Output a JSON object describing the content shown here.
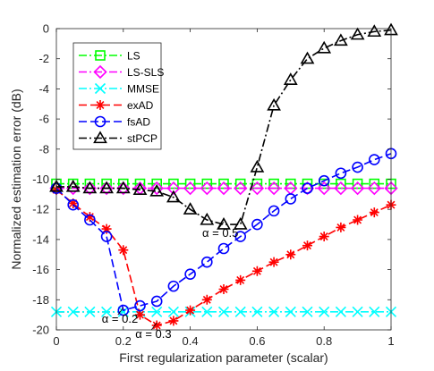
{
  "chart_data": {
    "type": "line",
    "title": "",
    "xlabel": "First regularization parameter (scalar)",
    "ylabel": "Normalized estimation error (dB)",
    "xlim": [
      0,
      1
    ],
    "ylim": [
      -20,
      0
    ],
    "xticks": [
      0,
      0.2,
      0.4,
      0.6,
      0.8,
      1
    ],
    "xtick_labels": [
      "0",
      "0.2",
      "0.4",
      "0.6",
      "0.8",
      "1"
    ],
    "yticks": [
      0,
      -2,
      -4,
      -6,
      -8,
      -10,
      -12,
      -14,
      -16,
      -18,
      -20
    ],
    "ytick_labels": [
      "0",
      "-2",
      "-4",
      "-6",
      "-8",
      "-10",
      "-12",
      "-14",
      "-16",
      "-18",
      "-20"
    ],
    "grid": false,
    "legend_position": "top-left",
    "x": [
      0,
      0.05,
      0.1,
      0.15,
      0.2,
      0.25,
      0.3,
      0.35,
      0.4,
      0.45,
      0.5,
      0.55,
      0.6,
      0.65,
      0.7,
      0.75,
      0.8,
      0.85,
      0.9,
      0.95,
      1
    ],
    "series": [
      {
        "name": "LS",
        "color": "#00ff00",
        "dash": "dashdot",
        "marker": "square",
        "values": [
          -10.3,
          -10.3,
          -10.3,
          -10.3,
          -10.3,
          -10.3,
          -10.3,
          -10.3,
          -10.3,
          -10.3,
          -10.3,
          -10.3,
          -10.3,
          -10.3,
          -10.3,
          -10.3,
          -10.3,
          -10.3,
          -10.3,
          -10.3,
          -10.3
        ]
      },
      {
        "name": "LS-SLS",
        "color": "#ff00ff",
        "dash": "dashdot",
        "marker": "diamond",
        "values": [
          -10.6,
          -10.6,
          -10.6,
          -10.6,
          -10.6,
          -10.6,
          -10.6,
          -10.6,
          -10.6,
          -10.6,
          -10.6,
          -10.6,
          -10.6,
          -10.6,
          -10.6,
          -10.6,
          -10.6,
          -10.6,
          -10.6,
          -10.6,
          -10.6
        ]
      },
      {
        "name": "MMSE",
        "color": "#00ffff",
        "dash": "dashdot",
        "marker": "x",
        "values": [
          -18.8,
          -18.8,
          -18.8,
          -18.8,
          -18.8,
          -18.8,
          -18.8,
          -18.8,
          -18.8,
          -18.8,
          -18.8,
          -18.8,
          -18.8,
          -18.8,
          -18.8,
          -18.8,
          -18.8,
          -18.8,
          -18.8,
          -18.8,
          -18.8
        ]
      },
      {
        "name": "exAD",
        "color": "#ff0000",
        "dash": "dashed",
        "marker": "asterisk",
        "values": [
          -10.7,
          -11.6,
          -12.5,
          -13.3,
          -14.7,
          -19.0,
          -19.7,
          -19.4,
          -18.7,
          -18.0,
          -17.3,
          -16.7,
          -16.1,
          -15.5,
          -15.0,
          -14.4,
          -13.8,
          -13.2,
          -12.7,
          -12.2,
          -11.7
        ]
      },
      {
        "name": "fsAD",
        "color": "#0000ff",
        "dash": "dashed",
        "marker": "circle",
        "values": [
          -10.6,
          -11.7,
          -12.7,
          -13.8,
          -18.7,
          -18.4,
          -18.1,
          -17.1,
          -16.3,
          -15.5,
          -14.6,
          -13.8,
          -13.0,
          -12.1,
          -11.3,
          -10.6,
          -10.1,
          -9.6,
          -9.2,
          -8.7,
          -8.3
        ]
      },
      {
        "name": "stPCP",
        "color": "#000000",
        "dash": "dashdot",
        "marker": "triangle",
        "values": [
          -10.5,
          -10.5,
          -10.6,
          -10.6,
          -10.6,
          -10.7,
          -10.8,
          -11.2,
          -12.0,
          -12.7,
          -13.0,
          -13.0,
          -9.2,
          -5.1,
          -3.4,
          -2.0,
          -1.3,
          -0.8,
          -0.4,
          -0.2,
          -0.1
        ]
      }
    ],
    "extra_lines": [
      {
        "series": "MMSE",
        "color": "#000000",
        "dash": "dashdot",
        "x": [
          0,
          0.2
        ],
        "y": [
          -18.8,
          -18.8
        ]
      }
    ],
    "annotations": [
      {
        "text": "α = 0.2",
        "x": 0.2,
        "y": -19.0
      },
      {
        "text": "α = 0.3",
        "x": 0.3,
        "y": -20.0
      },
      {
        "text": "α = 0.5",
        "x": 0.5,
        "y": -13.3
      }
    ]
  }
}
